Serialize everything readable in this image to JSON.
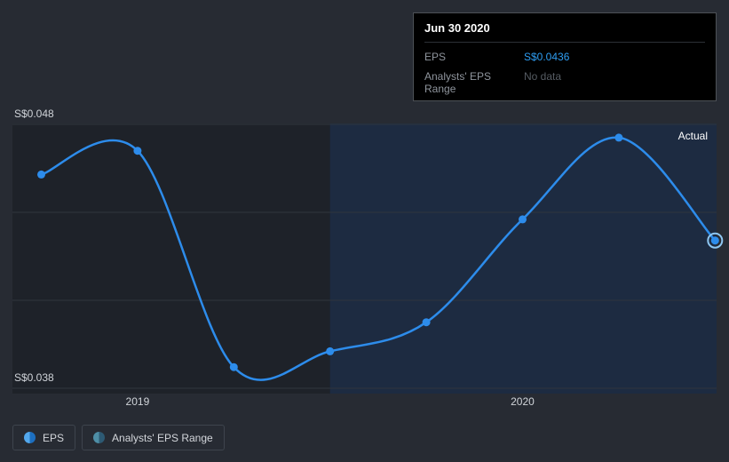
{
  "page": {
    "background": "#272b33"
  },
  "tooltip": {
    "title": "Jun 30 2020",
    "rows": [
      {
        "label": "EPS",
        "value": "S$0.0436",
        "value_color": "#2e9df2"
      },
      {
        "label": "Analysts' EPS Range",
        "value": "No data",
        "value_color": "#565c63"
      }
    ]
  },
  "chart_data": {
    "type": "line",
    "title": "",
    "xlabel": "",
    "ylabel": "EPS (S$)",
    "series": [
      {
        "name": "EPS",
        "x": [
          2018.75,
          2019.0,
          2019.25,
          2019.5,
          2019.75,
          2020.0,
          2020.25,
          2020.5
        ],
        "values": [
          0.0461,
          0.047,
          0.0388,
          0.0394,
          0.0405,
          0.0444,
          0.0475,
          0.0436
        ]
      }
    ],
    "highlight_point_index": 7,
    "highlight_point_label": "Jun 30 2020",
    "highlight_point_value": "S$0.0436",
    "x_ticks": [
      {
        "value": 2019,
        "label": "2019"
      },
      {
        "value": 2020,
        "label": "2020"
      }
    ],
    "y_ticks": [
      {
        "value": 0.048,
        "label": "S$0.048"
      },
      {
        "value": 0.038,
        "label": "S$0.038"
      }
    ],
    "ylim": [
      0.038,
      0.048
    ],
    "xlim": [
      2018.675,
      2020.504
    ],
    "region": {
      "label": "Actual",
      "from": 2019.5
    },
    "grid": true,
    "legend_position": "bottom-left",
    "colors": {
      "line": "#2d8ceb",
      "dot": "#2d8ceb",
      "highlight_ring": "#8ec7f2",
      "grid": "#30353d",
      "plot_bg": "#1e2229",
      "region_bg": "#1d2b41",
      "tick": "#d0d4d9",
      "actual_label": "#ffffff"
    }
  },
  "legend": [
    {
      "label": "EPS",
      "icon_left": "#53a8ed",
      "icon_right": "#1d6fc0"
    },
    {
      "label": "Analysts' EPS Range",
      "icon_left": "#4e8ea6",
      "icon_right": "#2d5a74"
    }
  ]
}
